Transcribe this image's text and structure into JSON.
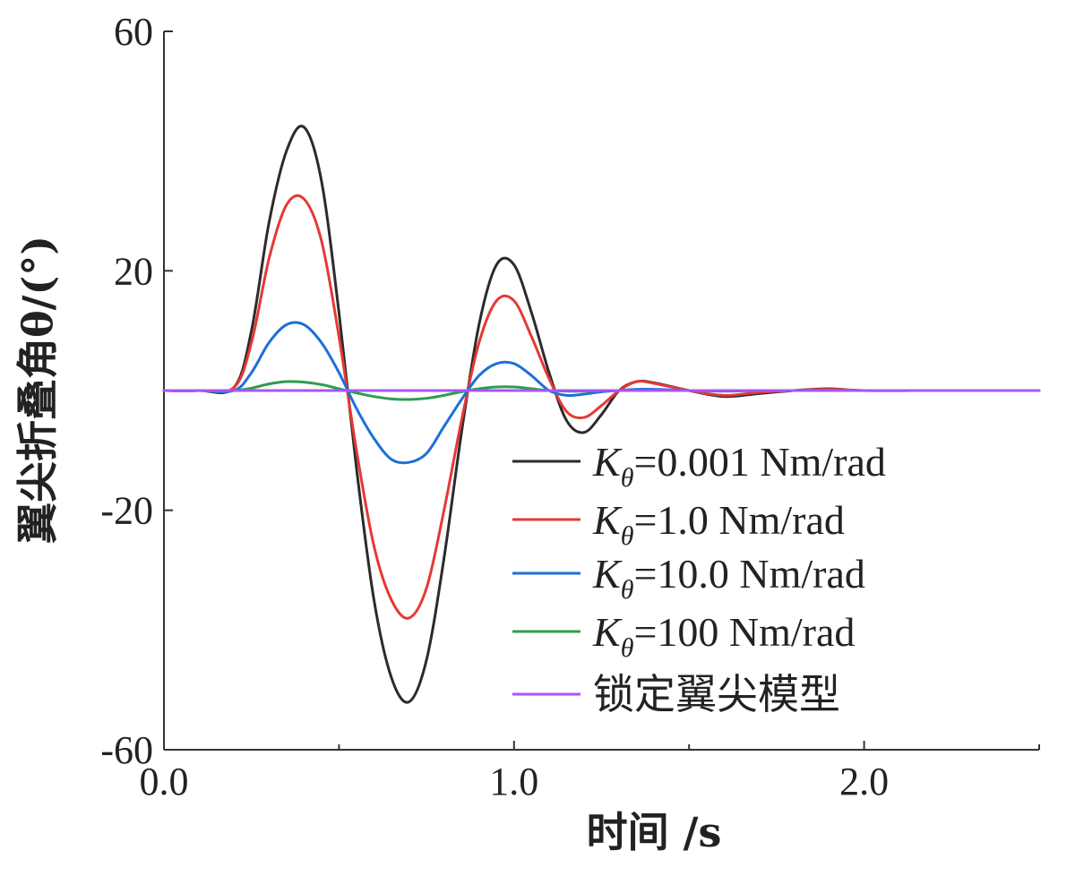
{
  "chart_data": {
    "type": "line",
    "xlabel": "时间 /s",
    "ylabel": "翼尖折叠角θ/(°)",
    "xlim": [
      0.0,
      2.5
    ],
    "ylim": [
      -60,
      60
    ],
    "x_ticks": [
      0.0,
      1.0,
      2.0
    ],
    "x_tick_labels": [
      "0.0",
      "1.0",
      "2.0"
    ],
    "y_ticks": [
      60,
      20,
      -20,
      -60
    ],
    "y_tick_labels": [
      "60",
      "20",
      "-20",
      "-60"
    ],
    "grid": false,
    "legend_position": "lower-right",
    "x": [
      0.0,
      0.1,
      0.2,
      0.25,
      0.3,
      0.35,
      0.4,
      0.45,
      0.5,
      0.55,
      0.6,
      0.65,
      0.7,
      0.75,
      0.8,
      0.85,
      0.9,
      0.95,
      1.0,
      1.05,
      1.1,
      1.15,
      1.2,
      1.25,
      1.3,
      1.35,
      1.4,
      1.5,
      1.6,
      1.7,
      1.8,
      1.9,
      2.0,
      2.2,
      2.5
    ],
    "series": [
      {
        "legend_k": "K",
        "legend_sub": "θ",
        "legend_rest": "=0.001 Nm/rad",
        "color": "#2b2b2b",
        "values": [
          0,
          0,
          0.5,
          10,
          28,
          40,
          44,
          35,
          13,
          -13,
          -35,
          -48,
          -52,
          -45,
          -28,
          -7,
          11,
          21,
          21,
          13,
          3,
          -5,
          -7,
          -4,
          0,
          1.5,
          1.3,
          0,
          -1,
          -0.5,
          0,
          0.3,
          0,
          0,
          0
        ]
      },
      {
        "legend_k": "K",
        "legend_sub": "θ",
        "legend_rest": "=1.0 Nm/rad",
        "color": "#e53935",
        "values": [
          0,
          0,
          0.5,
          8,
          22,
          31,
          32,
          25,
          9,
          -10,
          -26,
          -35,
          -38,
          -33,
          -20,
          -5,
          8,
          15,
          15,
          9,
          2,
          -3.5,
          -4.5,
          -2.5,
          0,
          1.5,
          1.2,
          0,
          -0.8,
          -0.3,
          0,
          0.2,
          0,
          0,
          0
        ]
      },
      {
        "legend_k": "K",
        "legend_sub": "θ",
        "legend_rest": "=10.0 Nm/rad",
        "color": "#1e6fd9",
        "values": [
          0,
          0,
          0,
          3,
          8,
          11,
          11,
          8,
          3,
          -3,
          -8,
          -11.5,
          -12,
          -10.5,
          -6,
          -1.5,
          2.5,
          4.5,
          4.5,
          2.5,
          0,
          -0.8,
          -0.6,
          -0.2,
          0,
          0.2,
          0.2,
          0,
          -0.1,
          0,
          0,
          0,
          0,
          0,
          0
        ]
      },
      {
        "legend_k": "K",
        "legend_sub": "θ",
        "legend_rest": "=100 Nm/rad",
        "color": "#2e9d4e",
        "values": [
          0,
          0,
          0,
          0.4,
          1.1,
          1.5,
          1.4,
          1.0,
          0.3,
          -0.4,
          -1.0,
          -1.4,
          -1.5,
          -1.3,
          -0.8,
          -0.2,
          0.3,
          0.6,
          0.6,
          0.3,
          0,
          -0.1,
          -0.1,
          0,
          0,
          0,
          0,
          0,
          0,
          0,
          0,
          0,
          0,
          0,
          0
        ]
      },
      {
        "legend_k": "",
        "legend_sub": "",
        "legend_rest": "锁定翼尖模型",
        "color": "#a855f7",
        "values": [
          0,
          0,
          0,
          0,
          0,
          0,
          0,
          0,
          0,
          0,
          0,
          0,
          0,
          0,
          0,
          0,
          0,
          0,
          0,
          0,
          0,
          0,
          0,
          0,
          0,
          0,
          0,
          0,
          0,
          0,
          0,
          0,
          0,
          0,
          0
        ]
      }
    ]
  }
}
